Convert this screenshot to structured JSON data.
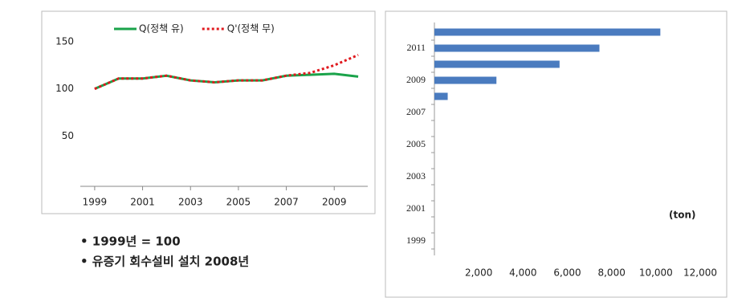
{
  "chart_data": [
    {
      "type": "line",
      "legend": "top",
      "x": [
        1999,
        2000,
        2001,
        2002,
        2003,
        2004,
        2005,
        2006,
        2007,
        2008,
        2009,
        2010
      ],
      "series": [
        {
          "name": "Q(정책 유)",
          "color": "#1aa34a",
          "dash": false,
          "values": [
            100,
            111,
            111,
            114,
            109,
            107,
            109,
            109,
            114,
            115,
            116,
            113
          ]
        },
        {
          "name": "Q'(정책 무)",
          "color": "#e0191e",
          "dash": true,
          "values": [
            100,
            111,
            111,
            114,
            109,
            107,
            109,
            109,
            114,
            117,
            125,
            136
          ]
        }
      ],
      "xlim": [
        1998.4,
        2010.4
      ],
      "xticks": [
        1999,
        2001,
        2003,
        2005,
        2007,
        2009
      ],
      "ylim": [
        0,
        150
      ],
      "yticks": [
        50,
        100,
        150
      ]
    },
    {
      "type": "bar",
      "orientation": "horizontal",
      "color": "#4a7bbf",
      "annotation": "(ton)",
      "categories": [
        "1999",
        null,
        "2001",
        null,
        "2003",
        null,
        "2005",
        null,
        "2007",
        null,
        "2009",
        null,
        "2011",
        null
      ],
      "values": [
        null,
        null,
        null,
        null,
        null,
        null,
        null,
        null,
        null,
        600,
        2800,
        5650,
        7450,
        10200
      ],
      "xlim": [
        0,
        12000
      ],
      "xticks": [
        {
          "value": 2000,
          "label": "2,000"
        },
        {
          "value": 4000,
          "label": "4,000"
        },
        {
          "value": 6000,
          "label": "6,000"
        },
        {
          "value": 8000,
          "label": "8,000"
        },
        {
          "value": 10000,
          "label": "10,000"
        },
        {
          "value": 12000,
          "label": "12,000"
        }
      ]
    }
  ],
  "notes": [
    "• 1999년 = 100",
    "• 유증기 회수설비 설치 2008년"
  ]
}
